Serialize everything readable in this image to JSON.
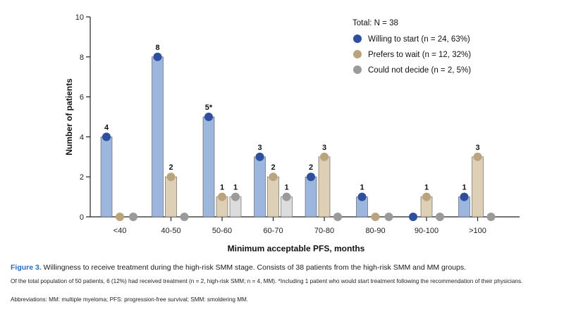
{
  "chart_data": {
    "type": "bar",
    "xlabel": "Minimum acceptable PFS, months",
    "ylabel": "Number of patients",
    "ylim": [
      0,
      10
    ],
    "yticks": [
      0,
      2,
      4,
      6,
      8,
      10
    ],
    "categories": [
      "<40",
      "40-50",
      "50-60",
      "60-70",
      "70-80",
      "80-90",
      "90-100",
      ">100"
    ],
    "legend_title": "Total: N = 38",
    "legend_position": "top-right",
    "grid": false,
    "series": [
      {
        "name": "Willing to start (n = 24, 63%)",
        "bar_color": "#9db6de",
        "marker_color": "#2d4f9e",
        "values": [
          4,
          8,
          5,
          3,
          2,
          1,
          0,
          1
        ],
        "labels": [
          "4",
          "8",
          "5*",
          "3",
          "2",
          "1",
          "",
          "1"
        ]
      },
      {
        "name": "Prefers to wait (n = 12, 32%)",
        "bar_color": "#ddd0b6",
        "marker_color": "#b9a47e",
        "values": [
          0,
          2,
          1,
          2,
          3,
          0,
          1,
          3
        ],
        "labels": [
          "",
          "2",
          "1",
          "2",
          "3",
          "",
          "1",
          "3"
        ]
      },
      {
        "name": "Could not decide (n = 2, 5%)",
        "bar_color": "#dcdcdc",
        "marker_color": "#9a9a9a",
        "values": [
          0,
          0,
          1,
          1,
          0,
          0,
          0,
          0
        ],
        "labels": [
          "",
          "",
          "1",
          "1",
          "",
          "",
          "",
          ""
        ]
      }
    ]
  },
  "caption": {
    "figure_label": "Figure 3.",
    "figure_title": " Willingness to receive treatment during the high-risk SMM stage. Consists of 38 patients from the high-risk SMM and MM groups.",
    "note": "Of the total population of 50 patients, 6 (12%) had received treatment (n = 2, high-risk SMM; n = 4, MM). *Including 1 patient who would start treatment following the recommendation of their physicians.",
    "abbreviations": "Abbreviations: MM: multiple myeloma; PFS: progression-free survival; SMM: smoldering MM."
  }
}
